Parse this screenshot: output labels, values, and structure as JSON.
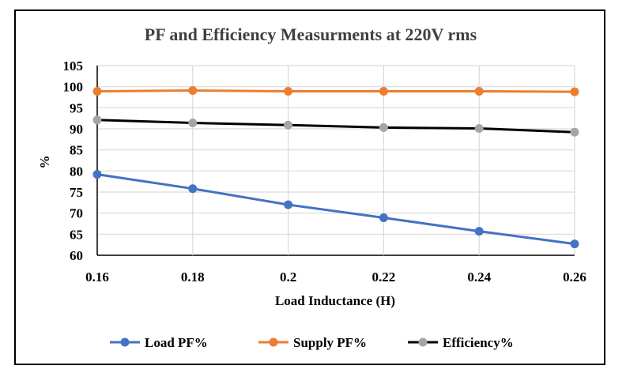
{
  "chart_data": {
    "type": "line",
    "title": "PF and Efficiency Measurments at 220V rms",
    "xlabel": "Load Inductance (H)",
    "ylabel": "%",
    "x": [
      0.16,
      0.18,
      0.2,
      0.22,
      0.24,
      0.26
    ],
    "x_tick_labels": [
      "0.16",
      "0.18",
      "0.2",
      "0.22",
      "0.24",
      "0.26"
    ],
    "xlim": [
      0.16,
      0.26
    ],
    "ylim": [
      60,
      105
    ],
    "y_ticks": [
      60,
      65,
      70,
      75,
      80,
      85,
      90,
      95,
      100,
      105
    ],
    "grid": true,
    "legend_position": "bottom",
    "series": [
      {
        "name": "Load PF%",
        "color": "#4472C4",
        "values": [
          79.2,
          75.8,
          72.0,
          68.9,
          65.7,
          62.7
        ]
      },
      {
        "name": "Supply PF%",
        "color": "#ED7D31",
        "values": [
          98.9,
          99.1,
          98.9,
          98.9,
          98.9,
          98.8
        ]
      },
      {
        "name": "Efficiency%",
        "color": "#000000",
        "marker_color": "#A5A5A5",
        "values": [
          92.1,
          91.4,
          90.9,
          90.3,
          90.1,
          89.2
        ]
      }
    ]
  }
}
